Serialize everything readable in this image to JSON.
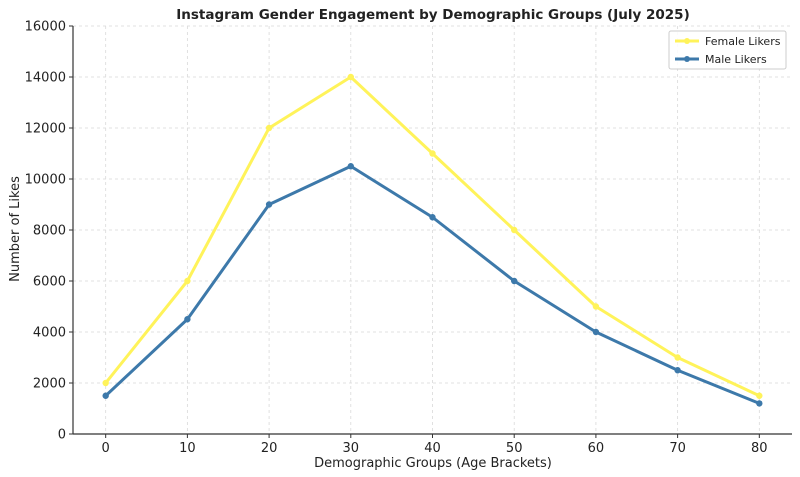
{
  "chart_data": {
    "type": "line",
    "title": "Instagram Gender Engagement by Demographic Groups (July 2025)",
    "xlabel": "Demographic Groups (Age Brackets)",
    "ylabel": "Number of Likes",
    "x": [
      0,
      10,
      20,
      30,
      40,
      50,
      60,
      70,
      80
    ],
    "xlim": [
      -4,
      84
    ],
    "ylim": [
      0,
      16000
    ],
    "xticks": [
      "0",
      "10",
      "20",
      "30",
      "40",
      "50",
      "60",
      "70",
      "80"
    ],
    "yticks": [
      "0",
      "2000",
      "4000",
      "6000",
      "8000",
      "10000",
      "12000",
      "14000",
      "16000"
    ],
    "grid": true,
    "legend_position": "top-right",
    "series": [
      {
        "name": "Female Likers",
        "color": "#fff35a",
        "values": [
          2000,
          6000,
          12000,
          14000,
          11000,
          8000,
          5000,
          3000,
          1500
        ]
      },
      {
        "name": "Male Likers",
        "color": "#3d79aa",
        "values": [
          1500,
          4500,
          9000,
          10500,
          8500,
          6000,
          4000,
          2500,
          1200
        ]
      }
    ]
  }
}
